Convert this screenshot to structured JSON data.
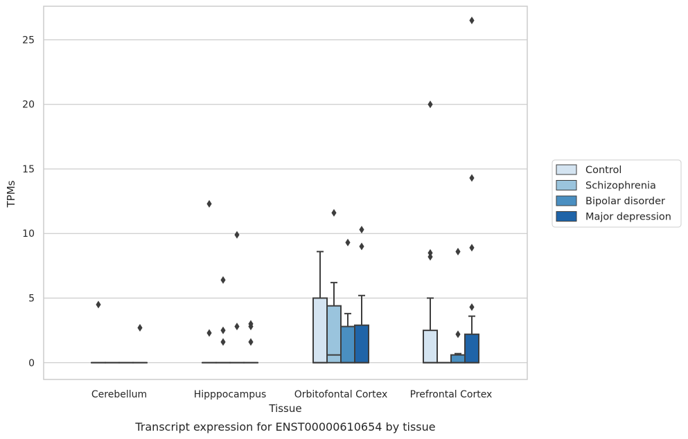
{
  "caption": "Transcript expression for ENST00000610654 by tissue",
  "colors": {
    "Control": "#d4e4f1",
    "Schizophrenia": "#9ac4dd",
    "Bipolar disorder": "#4a8fc1",
    "Major depression": "#1f64a8",
    "edge": "#3d3d3d",
    "grid": "#cccccc",
    "frame": "#cccccc"
  },
  "chart_data": {
    "type": "boxplot",
    "xlabel": "Tissue",
    "ylabel": "TPMs",
    "ylim": [
      -1.3,
      27.6
    ],
    "yticks": [
      0,
      5,
      10,
      15,
      20,
      25
    ],
    "grid": "horizontal",
    "legend_position": "right",
    "categories": [
      "Cerebellum",
      "Hipppocampus",
      "Orbitofontal Cortex",
      "Prefrontal Cortex"
    ],
    "series": [
      {
        "name": "Control",
        "boxes": [
          {
            "q1": 0,
            "median": 0,
            "q3": 0,
            "whisker_low": 0,
            "whisker_high": 0,
            "outliers": [
              4.5
            ]
          },
          {
            "q1": 0,
            "median": 0,
            "q3": 0,
            "whisker_low": 0,
            "whisker_high": 0,
            "outliers": [
              12.3,
              2.3
            ]
          },
          {
            "q1": 0,
            "median": 0,
            "q3": 5.0,
            "whisker_low": 0,
            "whisker_high": 8.6,
            "outliers": []
          },
          {
            "q1": 0,
            "median": 0,
            "q3": 2.5,
            "whisker_low": 0,
            "whisker_high": 5.0,
            "outliers": [
              20.0,
              8.5,
              8.2
            ]
          }
        ]
      },
      {
        "name": "Schizophrenia",
        "boxes": [
          {
            "q1": 0,
            "median": 0,
            "q3": 0,
            "whisker_low": 0,
            "whisker_high": 0,
            "outliers": []
          },
          {
            "q1": 0,
            "median": 0,
            "q3": 0,
            "whisker_low": 0,
            "whisker_high": 0,
            "outliers": [
              6.4,
              2.5,
              1.6
            ]
          },
          {
            "q1": 0,
            "median": 0.6,
            "q3": 4.4,
            "whisker_low": 0,
            "whisker_high": 6.2,
            "outliers": [
              11.6
            ]
          },
          {
            "q1": 0,
            "median": 0,
            "q3": 0,
            "whisker_low": 0,
            "whisker_high": 0,
            "outliers": []
          }
        ]
      },
      {
        "name": "Bipolar disorder",
        "boxes": [
          {
            "q1": 0,
            "median": 0,
            "q3": 0,
            "whisker_low": 0,
            "whisker_high": 0,
            "outliers": []
          },
          {
            "q1": 0,
            "median": 0,
            "q3": 0,
            "whisker_low": 0,
            "whisker_high": 0,
            "outliers": [
              9.9,
              2.8
            ]
          },
          {
            "q1": 0,
            "median": 0,
            "q3": 2.8,
            "whisker_low": 0,
            "whisker_high": 3.8,
            "outliers": [
              9.3
            ]
          },
          {
            "q1": 0,
            "median": 0,
            "q3": 0.6,
            "whisker_low": 0,
            "whisker_high": 0.7,
            "outliers": [
              8.6,
              2.2
            ]
          }
        ]
      },
      {
        "name": "Major depression",
        "boxes": [
          {
            "q1": 0,
            "median": 0,
            "q3": 0,
            "whisker_low": 0,
            "whisker_high": 0,
            "outliers": [
              2.7
            ]
          },
          {
            "q1": 0,
            "median": 0,
            "q3": 0,
            "whisker_low": 0,
            "whisker_high": 0,
            "outliers": [
              3.0,
              2.8,
              1.6
            ]
          },
          {
            "q1": 0,
            "median": 0,
            "q3": 2.9,
            "whisker_low": 0,
            "whisker_high": 5.2,
            "outliers": [
              10.3,
              9.0
            ]
          },
          {
            "q1": 0,
            "median": 0,
            "q3": 2.2,
            "whisker_low": 0,
            "whisker_high": 3.6,
            "outliers": [
              26.5,
              14.3,
              4.3,
              8.9
            ]
          }
        ]
      }
    ]
  }
}
